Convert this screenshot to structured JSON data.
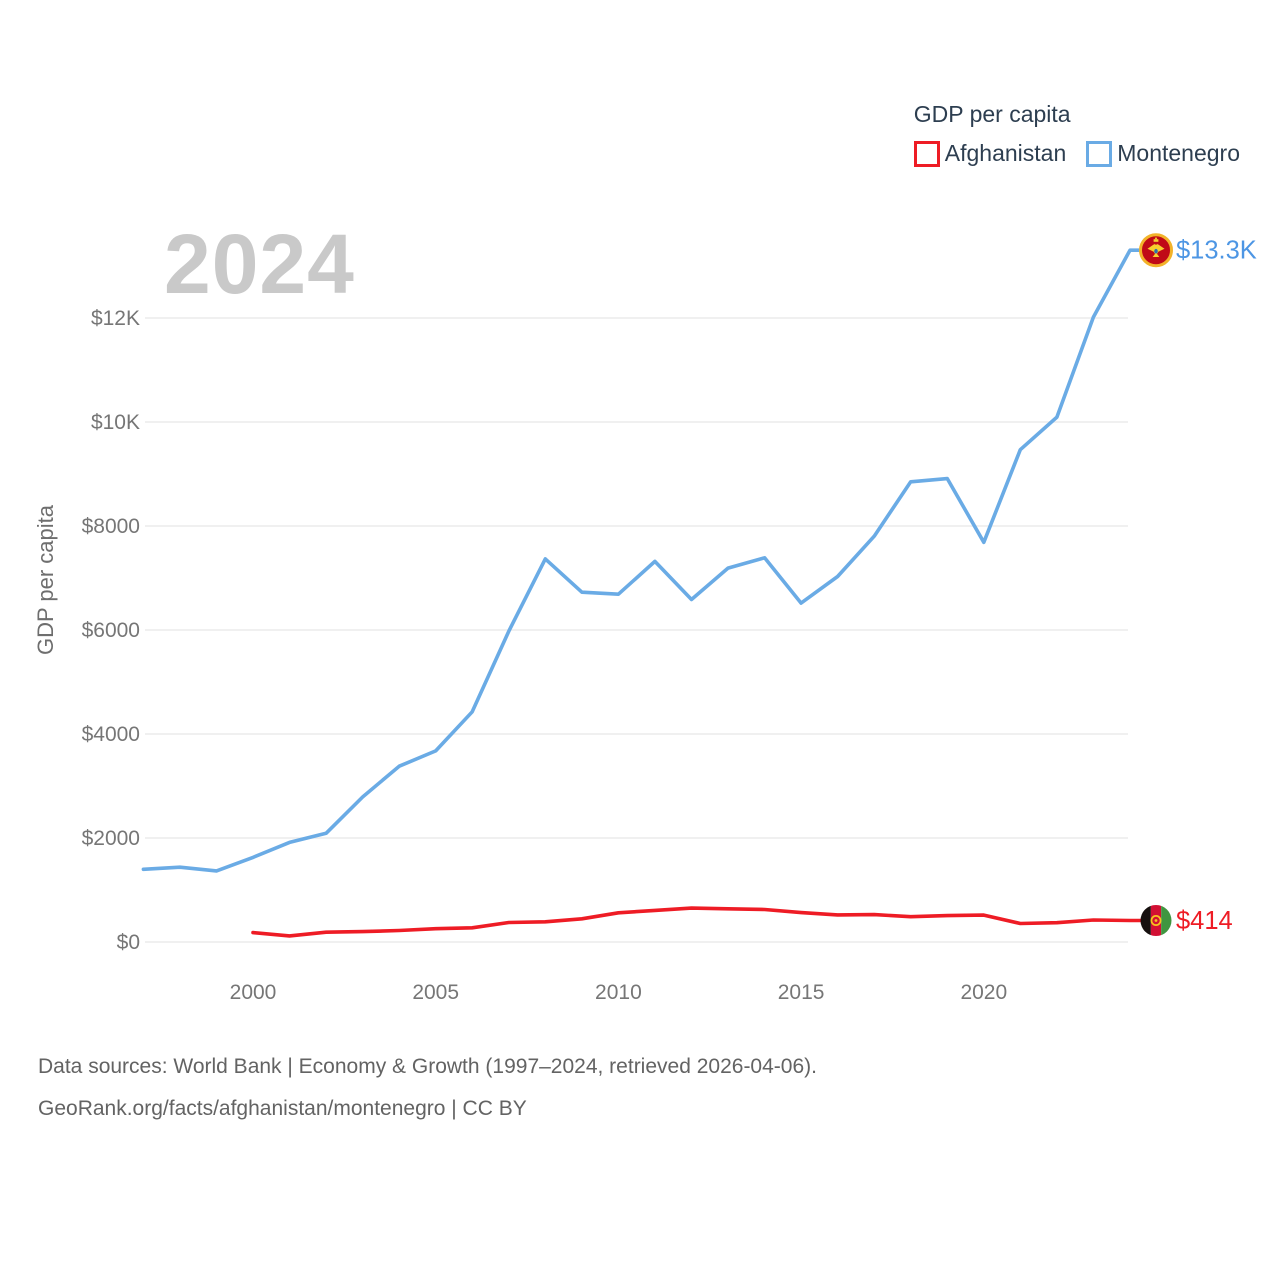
{
  "watermark": "2024",
  "legend": {
    "title": "GDP per capita",
    "items": [
      {
        "label": "Afghanistan",
        "color": "#ee1c25"
      },
      {
        "label": "Montenegro",
        "color": "#6aabe5"
      }
    ]
  },
  "footer": {
    "line1": "Data sources: World Bank | Economy & Growth (1997–2024, retrieved 2026-04-06).",
    "line2": "GeoRank.org/facts/afghanistan/montenegro | CC BY"
  },
  "colors": {
    "background": "#ffffff",
    "grid": "#ececec",
    "tick_text": "#767676",
    "axis_title_text": "#6e6e6e",
    "legend_text": "#2d3e50",
    "watermark_text": "#c9c9c9",
    "footer_text": "#636363"
  },
  "flags": {
    "montenegro": {
      "field": "#c00a17",
      "ring": "#f2b32a",
      "emblem": "#f7d02e",
      "shield": "#2d6fb0"
    },
    "afghanistan": {
      "black": "#16100f",
      "red": "#d21034",
      "green": "#3f9640",
      "emblem": "#f7c51e"
    }
  },
  "chart_data": {
    "type": "line",
    "title": "GDP per capita",
    "xlabel": "",
    "ylabel": "GDP per capita",
    "xlim": [
      1997,
      2024
    ],
    "ylim": [
      0,
      13600
    ],
    "grid": "horizontal",
    "legend_position": "top-right",
    "x_ticks": [
      2000,
      2005,
      2010,
      2015,
      2020
    ],
    "y_ticks": [
      {
        "value": 0,
        "label": "$0"
      },
      {
        "value": 2000,
        "label": "$2000"
      },
      {
        "value": 4000,
        "label": "$4000"
      },
      {
        "value": 6000,
        "label": "$6000"
      },
      {
        "value": 8000,
        "label": "$8000"
      },
      {
        "value": 10000,
        "label": "$10K"
      },
      {
        "value": 12000,
        "label": "$12K"
      }
    ],
    "series": [
      {
        "name": "Montenegro",
        "color": "#6aabe5",
        "end_label": "$13.3K",
        "end_label_color": "#4d96e4",
        "flag_icon": "montenegro-flag-icon",
        "x": [
          1997,
          1998,
          1999,
          2000,
          2001,
          2002,
          2003,
          2004,
          2005,
          2006,
          2007,
          2008,
          2009,
          2010,
          2011,
          2012,
          2013,
          2014,
          2015,
          2016,
          2017,
          2018,
          2019,
          2020,
          2021,
          2022,
          2023,
          2024
        ],
        "values": [
          1399,
          1438,
          1368,
          1627,
          1915,
          2090,
          2789,
          3380,
          3675,
          4426,
          5976,
          7368,
          6727,
          6688,
          7319,
          6587,
          7190,
          7388,
          6517,
          7029,
          7804,
          8850,
          8911,
          7687,
          9467,
          10094,
          12017,
          13304
        ]
      },
      {
        "name": "Afghanistan",
        "color": "#ee1c25",
        "end_label": "$414",
        "end_label_color": "#ee1c25",
        "flag_icon": "afghanistan-flag-icon",
        "x": [
          2000,
          2001,
          2002,
          2003,
          2004,
          2005,
          2006,
          2007,
          2008,
          2009,
          2010,
          2011,
          2012,
          2013,
          2014,
          2015,
          2016,
          2017,
          2018,
          2019,
          2020,
          2021,
          2022,
          2023,
          2024
        ],
        "values": [
          180,
          117,
          188,
          200,
          222,
          255,
          274,
          375,
          388,
          446,
          561,
          607,
          651,
          638,
          625,
          566,
          522,
          526,
          486,
          507,
          517,
          356,
          371,
          423,
          414
        ]
      }
    ]
  }
}
